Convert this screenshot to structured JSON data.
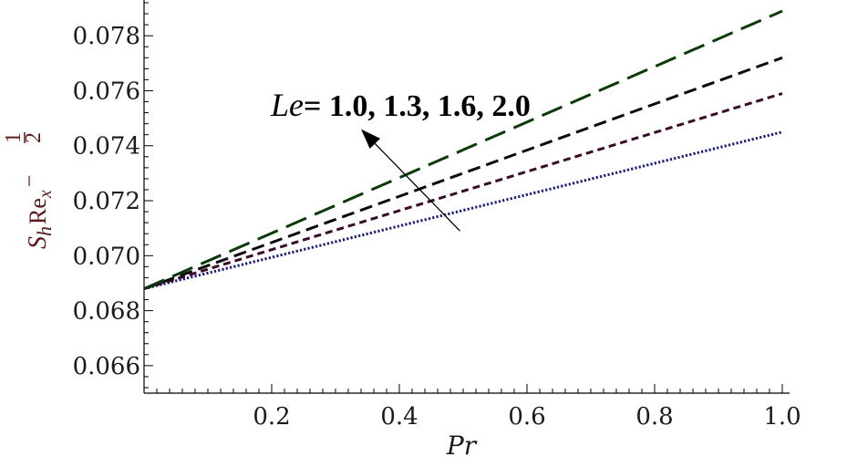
{
  "chart_data": {
    "type": "line",
    "xlabel": "Pr",
    "ylabel": {
      "s": "S",
      "s_sub": "h",
      "re": "Re",
      "re_sub": "x",
      "sup_minus": "−",
      "sup_num": "1",
      "sup_den": "2"
    },
    "xlim": [
      0,
      1.0
    ],
    "ylim": [
      0.065,
      0.0793
    ],
    "x_ticks": [
      "0.2",
      "0.4",
      "0.6",
      "0.8",
      "1.0"
    ],
    "x_tick_values": [
      0.2,
      0.4,
      0.6,
      0.8,
      1.0
    ],
    "y_ticks": [
      "0.066",
      "0.068",
      "0.070",
      "0.072",
      "0.074",
      "0.076",
      "0.078"
    ],
    "y_tick_values": [
      0.066,
      0.068,
      0.07,
      0.072,
      0.074,
      0.076,
      0.078
    ],
    "grid": false,
    "series": [
      {
        "color": "#1a1a7a",
        "dash": "dotted",
        "x": [
          0,
          1.0
        ],
        "y": [
          0.0688,
          0.0745
        ]
      },
      {
        "color": "#3a0a2a",
        "dash": "short",
        "x": [
          0,
          1.0
        ],
        "y": [
          0.0688,
          0.0759
        ]
      },
      {
        "color": "#0a0a0a",
        "dash": "medium",
        "x": [
          0,
          1.0
        ],
        "y": [
          0.0688,
          0.0772
        ]
      },
      {
        "color": "#0a3a0a",
        "dash": "long",
        "x": [
          0,
          1.0
        ],
        "y": [
          0.0688,
          0.0789
        ]
      }
    ],
    "annotation": {
      "label_var": "Le",
      "label_values": "= 1.0, 1.3, 1.6, 2.0",
      "arrow_from": [
        0.495,
        0.0709
      ],
      "arrow_to": [
        0.34,
        0.0746
      ]
    }
  }
}
